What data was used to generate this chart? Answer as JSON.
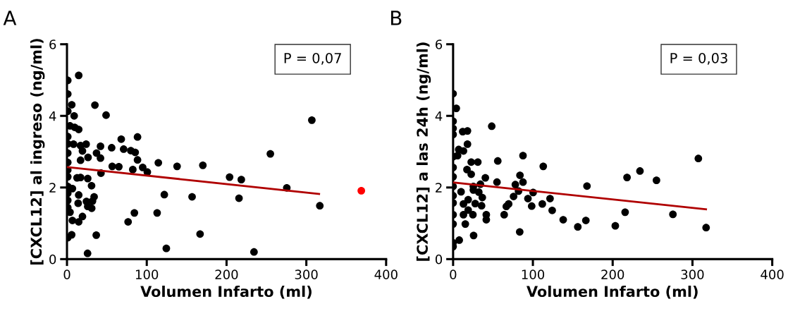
{
  "chart_data": [
    {
      "type": "scatter",
      "title": "A",
      "xlabel": "Volumen Infarto (ml)",
      "ylabel": "[CXCL12] al ingreso (ng/ml)",
      "xlim": [
        0,
        400
      ],
      "xticks": [
        0,
        100,
        200,
        300,
        400
      ],
      "ylim": [
        0,
        6
      ],
      "yticks": [
        0,
        2,
        4,
        6
      ],
      "grid": false,
      "marker": "circle",
      "annotations": [
        "P = 0,07"
      ],
      "series": [
        {
          "color": "#000000",
          "x": [
            14.7,
            1,
            1,
            6,
            1,
            9,
            35,
            49,
            3.8,
            9.7,
            14.7,
            1,
            1,
            8.2,
            17,
            24,
            19.4,
            1,
            1,
            17,
            26.4,
            37,
            42,
            42,
            56,
            68,
            71,
            80,
            85.5,
            88.4,
            88.4,
            56.7,
            65,
            82.5,
            94.9,
            100.7,
            114.5,
            138,
            42.6,
            1,
            1,
            12.6,
            17,
            26,
            30.8,
            1,
            6.8,
            1,
            14.7,
            34,
            122,
            156.8,
            1,
            14,
            24.4,
            32,
            26,
            31,
            1,
            3.8,
            19.4,
            84.5,
            76.6,
            113,
            6.8,
            14.7,
            1,
            5.9,
            36.7,
            25.8,
            124.5,
            166.8,
            170.3,
            203.8,
            218.5,
            215.6,
            254.9,
            275.5,
            306.9,
            316.9,
            234.4
          ],
          "values": [
            5.13,
            4.99,
            4.61,
            4.31,
            4.13,
            4.0,
            4.3,
            4.02,
            3.72,
            3.68,
            3.62,
            3.42,
            3.22,
            3.21,
            3.17,
            3.21,
            3.02,
            2.96,
            2.7,
            2.76,
            2.84,
            2.96,
            3.15,
            2.82,
            3.11,
            3.35,
            3.07,
            3.03,
            2.98,
            3.41,
            2.77,
            2.59,
            2.58,
            2.5,
            2.56,
            2.43,
            2.69,
            2.59,
            2.4,
            2.49,
            2.3,
            2.27,
            2.28,
            2.25,
            2.05,
            2.03,
            1.97,
            1.84,
            1.79,
            1.74,
            1.8,
            1.74,
            1.64,
            1.56,
            1.61,
            1.62,
            1.47,
            1.42,
            1.44,
            1.31,
            1.19,
            1.29,
            1.04,
            1.29,
            1.08,
            1.04,
            0.6,
            0.68,
            0.67,
            0.16,
            0.3,
            0.7,
            2.62,
            2.29,
            2.22,
            1.7,
            2.94,
            1.99,
            3.88,
            1.49,
            0.2
          ]
        },
        {
          "color": "#ff0000",
          "x": [
            368.9
          ],
          "values": [
            1.91
          ]
        },
        {
          "type": "line",
          "color": "#b00000",
          "marker": "none",
          "x": [
            0,
            316
          ],
          "values": [
            2.57,
            1.82
          ]
        }
      ]
    },
    {
      "type": "scatter",
      "title": "B",
      "xlabel": "Volumen Infarto (ml)",
      "ylabel": "[CXCL12] a las 24h (ng/ml)",
      "xlim": [
        0,
        400
      ],
      "xticks": [
        0,
        100,
        200,
        300,
        400
      ],
      "ylim": [
        0,
        6
      ],
      "yticks": [
        0,
        2,
        4,
        6
      ],
      "grid": false,
      "marker": "circle",
      "annotations": [
        "P = 0,03"
      ],
      "series": [
        {
          "color": "#000000",
          "x": [
            0,
            4,
            0,
            0,
            0,
            12,
            18,
            18,
            48.4,
            7,
            13,
            0,
            5.6,
            22.7,
            31,
            56,
            87.6,
            113,
            0,
            17.4,
            22.7,
            40.4,
            55,
            83.8,
            87.6,
            78,
            0,
            0,
            25.4,
            34.2,
            25.4,
            10,
            32.2,
            36.6,
            82,
            75.8,
            100.3,
            93.8,
            121.5,
            0,
            0,
            18.9,
            13,
            27.7,
            35.7,
            69.6,
            66.7,
            98.5,
            111.8,
            124.2,
            18.9,
            13,
            24.8,
            41.6,
            41.6,
            64,
            0,
            15.3,
            0,
            138,
            156.3,
            166.4,
            83.5,
            25.7,
            7.7,
            0,
            0,
            167.8,
            203.3,
            215.6,
            218,
            234.2,
            254.9,
            275.5,
            307.4,
            317.1
          ],
          "values": [
            4.62,
            4.21,
            3.85,
            3.65,
            3.48,
            3.56,
            3.58,
            3.21,
            3.71,
            3.06,
            3.02,
            2.86,
            2.89,
            2.71,
            2.71,
            2.74,
            2.89,
            2.59,
            2.56,
            2.5,
            2.37,
            2.27,
            2.15,
            2.34,
            2.15,
            2.08,
            2.3,
            2.03,
            2.03,
            2.09,
            1.93,
            1.88,
            1.87,
            1.72,
            1.9,
            1.75,
            1.86,
            1.69,
            1.69,
            1.77,
            1.57,
            1.66,
            1.54,
            1.55,
            1.49,
            1.54,
            1.47,
            1.48,
            1.54,
            1.36,
            1.37,
            1.24,
            1.24,
            1.24,
            1.1,
            1.24,
            1.24,
            0.98,
            0.98,
            1.1,
            0.9,
            1.08,
            0.76,
            0.66,
            0.53,
            0.46,
            0.35,
            2.04,
            0.93,
            1.31,
            2.28,
            2.46,
            2.2,
            1.25,
            2.81,
            0.88
          ]
        },
        {
          "type": "line",
          "color": "#b00000",
          "marker": "none",
          "x": [
            0,
            317
          ],
          "values": [
            2.14,
            1.39
          ]
        }
      ]
    }
  ]
}
